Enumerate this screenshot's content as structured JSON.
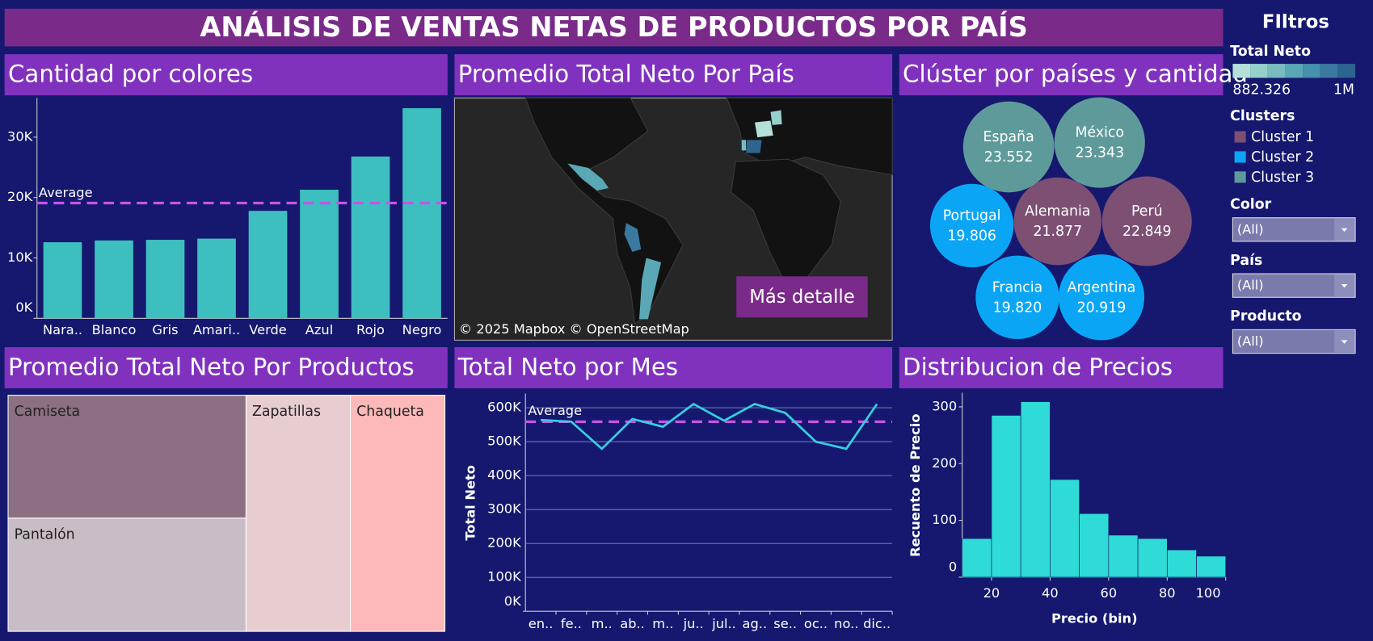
{
  "title": "ANÁLISIS DE VENTAS NETAS DE PRODUCTOS POR PAÍS",
  "chart_data": [
    {
      "type": "bar",
      "title": "Cantidad por colores",
      "categories": [
        "Nara..",
        "Blanco",
        "Gris",
        "Amari..",
        "Verde",
        "Azul",
        "Rojo",
        "Negro"
      ],
      "values": [
        12600,
        12900,
        13000,
        13200,
        17800,
        21300,
        26800,
        34800
      ],
      "color": "#3dbfc0",
      "ylim": [
        0,
        36500
      ],
      "yticks": [
        {
          "value": 0,
          "label": "0K"
        },
        {
          "value": 10000,
          "label": "10K"
        },
        {
          "value": 20000,
          "label": "20K"
        },
        {
          "value": 30000,
          "label": "30K"
        }
      ],
      "reference_line": {
        "label": "Average",
        "value": 19100,
        "color": "#c952e8"
      }
    },
    {
      "type": "map",
      "title": "Promedio Total Neto Por País",
      "attribution": "© 2025 Mapbox © OpenStreetMap",
      "button": "Más detalle"
    },
    {
      "type": "bubble",
      "title": "Clúster por países y cantidad",
      "legend_title": "Clusters",
      "series": [
        {
          "name": "Cluster 1",
          "color": "#7d4f73",
          "categories": [
            "Alemania",
            "Perú"
          ],
          "values": [
            21877,
            22849
          ],
          "value_labels": [
            "21.877",
            "22.849"
          ]
        },
        {
          "name": "Cluster 2",
          "color": "#0aa6f5",
          "categories": [
            "Portugal",
            "Francia",
            "Argentina"
          ],
          "values": [
            19806,
            19820,
            20919
          ],
          "value_labels": [
            "19.806",
            "19.820",
            "20.919"
          ]
        },
        {
          "name": "Cluster 3",
          "color": "#5f9a9a",
          "categories": [
            "España",
            "México"
          ],
          "values": [
            23552,
            23343
          ],
          "value_labels": [
            "23.552",
            "23.343"
          ]
        }
      ]
    },
    {
      "type": "treemap",
      "title": "Promedio Total Neto Por Productos",
      "categories": [
        "Camiseta",
        "Pantalón",
        "Zapatillas",
        "Chaqueta"
      ],
      "values": [
        38,
        35,
        32,
        29
      ],
      "colors": [
        "#8c6f80",
        "#c8bcc6",
        "#e8cdd0",
        "#fdb8b9"
      ]
    },
    {
      "type": "line",
      "title": "Total Neto por Mes",
      "y_label": "Total Neto",
      "categories": [
        "en..",
        "fe..",
        "m..",
        "ab..",
        "m..",
        "ju..",
        "jul..",
        "ag..",
        "se..",
        "oc..",
        "no..",
        "dic.."
      ],
      "values": [
        564000,
        559000,
        479000,
        567000,
        544000,
        611000,
        562000,
        611000,
        585000,
        500000,
        479000,
        611000
      ],
      "color": "#34d0e0",
      "ylim": [
        0,
        642000
      ],
      "grid": true,
      "yticks": [
        {
          "value": 0,
          "label": "0K"
        },
        {
          "value": 100000,
          "label": "100K"
        },
        {
          "value": 200000,
          "label": "200K"
        },
        {
          "value": 300000,
          "label": "300K"
        },
        {
          "value": 400000,
          "label": "400K"
        },
        {
          "value": 500000,
          "label": "500K"
        },
        {
          "value": 600000,
          "label": "600K"
        }
      ],
      "reference_line": {
        "label": "Average",
        "value": 559000,
        "color": "#c952e8"
      }
    },
    {
      "type": "histogram",
      "title": "Distribucion de Precios",
      "x_label": "Precio (bin)",
      "y_label": "Recuento de Precio",
      "bins": [
        10,
        20,
        30,
        40,
        50,
        60,
        70,
        80,
        90,
        100
      ],
      "values": [
        68,
        285,
        309,
        172,
        112,
        74,
        68,
        48,
        37
      ],
      "color": "#2edbd6",
      "xlim": [
        10,
        100
      ],
      "xticks": [
        20,
        40,
        60,
        80,
        100
      ],
      "ylim": [
        0,
        325
      ],
      "yticks": [
        0,
        100,
        200,
        300
      ]
    }
  ],
  "filters": {
    "title": "FIltros",
    "total_neto": {
      "title": "Total Neto",
      "colors": [
        "#b4e0d8",
        "#96d0ca",
        "#78bcc0",
        "#5aa8b6",
        "#4690ac",
        "#3a7aa0",
        "#2e6490"
      ],
      "ticks": [
        {
          "value": 882326,
          "label": "882.326"
        },
        {
          "value": 1000000,
          "label": "1M"
        }
      ]
    },
    "dropdowns": [
      {
        "label": "Color",
        "value": "(All)"
      },
      {
        "label": "País",
        "value": "(All)"
      },
      {
        "label": "Producto",
        "value": "(All)"
      }
    ]
  }
}
